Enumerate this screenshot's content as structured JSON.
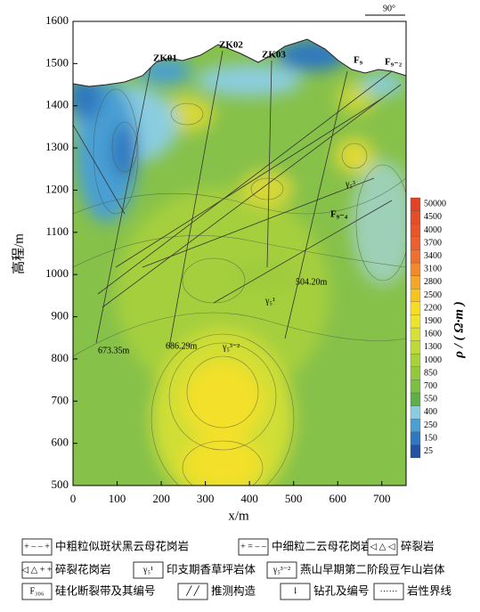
{
  "chart_data": {
    "type": "contour",
    "xlabel": "x/m",
    "ylabel": "高程/m",
    "xlim": [
      0,
      755
    ],
    "ylim": [
      500,
      1600
    ],
    "xticks": [
      0,
      100,
      200,
      300,
      400,
      500,
      600,
      700
    ],
    "yticks": [
      500,
      600,
      700,
      800,
      900,
      1000,
      1100,
      1200,
      1300,
      1400,
      1500,
      1600
    ],
    "colorbar": {
      "label": "ρ / ( Ω·m )",
      "levels": [
        25,
        150,
        250,
        400,
        550,
        700,
        850,
        1000,
        1300,
        1600,
        1900,
        2200,
        2500,
        2800,
        3100,
        3400,
        3700,
        4000,
        4500,
        50000
      ],
      "colors": [
        "#2451a4",
        "#2f78c0",
        "#4a9fd3",
        "#8bcde0",
        "#5fae4a",
        "#7cbf45",
        "#93c83d",
        "#a9d13a",
        "#bfd938",
        "#d6e134",
        "#ece42c",
        "#f6dc22",
        "#f6c41f",
        "#f4a62a",
        "#f08a2c",
        "#ed7030",
        "#ea602e",
        "#e8552a",
        "#e44d27",
        "#e14324"
      ]
    },
    "annotations": [
      "ZK01",
      "ZK02",
      "ZK03",
      "F₉",
      "F₉₋₂",
      "F₉₋₄",
      "504.20m",
      "673.35m",
      "686.29m",
      "γ₅¹",
      "γ₅³⁻²",
      "γ₅³",
      "90°"
    ],
    "legend": [
      {
        "symbol": "+ – – +",
        "label": "中粗粒似斑状黑云母花岗岩"
      },
      {
        "symbol": "+ = – –",
        "label": "中细粒二云母花岗岩"
      },
      {
        "symbol": "◁ △ ◁",
        "label": "碎裂岩"
      },
      {
        "symbol": "◁ △ + +",
        "label": "碎裂花岗岩"
      },
      {
        "symbol": "γ₅¹",
        "label": "印支期香草坪岩体"
      },
      {
        "symbol": "γ₅³⁻²",
        "label": "燕山早期第二阶段豆乍山岩体"
      },
      {
        "symbol": "F₃₀₆",
        "label": "硅化断裂带及其编号"
      },
      {
        "symbol": "╱ ╱",
        "label": "推测构造"
      },
      {
        "symbol": "⇂",
        "label": "钻孔及编号"
      },
      {
        "symbol": "⋯⋯",
        "label": "岩性界线"
      }
    ]
  }
}
